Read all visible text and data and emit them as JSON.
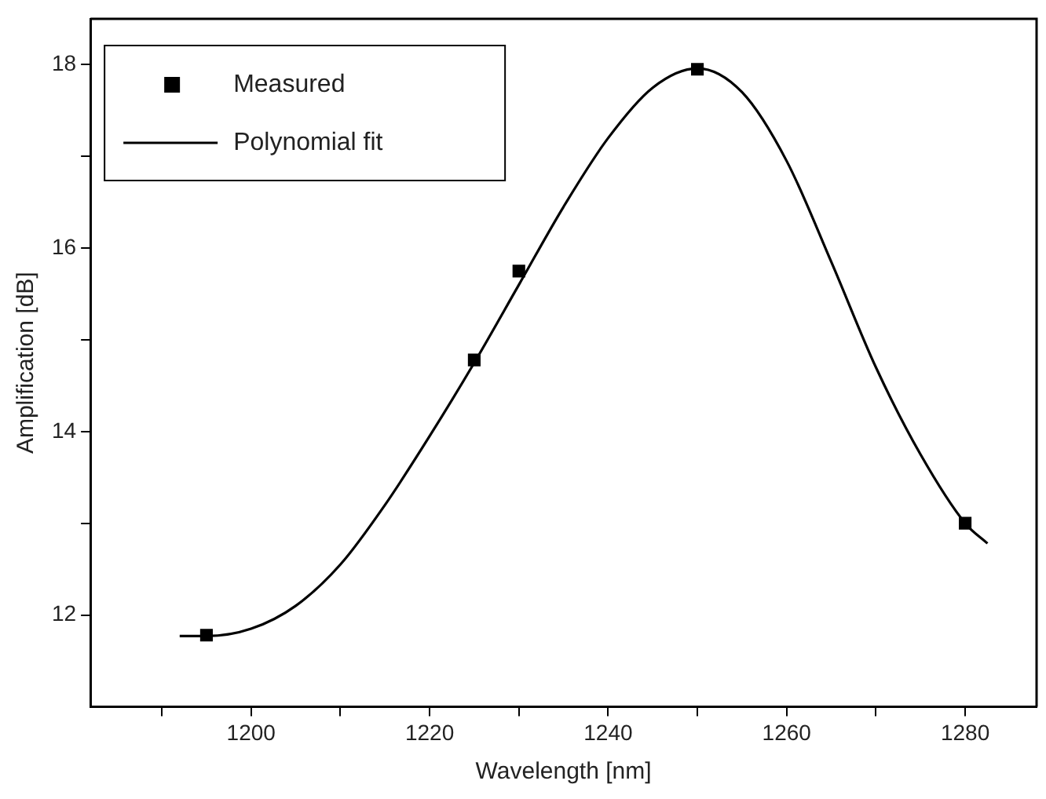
{
  "chart_data": {
    "type": "scatter",
    "xlabel": "Wavelength [nm]",
    "ylabel": "Amplification [dB]",
    "xlim": [
      1182,
      1288
    ],
    "ylim": [
      11,
      18.5
    ],
    "xticks": [
      {
        "value": 1190,
        "label": null
      },
      1200,
      {
        "value": 1210,
        "label": null
      },
      1220,
      {
        "value": 1230,
        "label": null
      },
      1240,
      {
        "value": 1250,
        "label": null
      },
      1260,
      {
        "value": 1270,
        "label": null
      },
      1280
    ],
    "yticks": [
      12,
      {
        "value": 13,
        "label": null
      },
      14,
      {
        "value": 15,
        "label": null
      },
      16,
      {
        "value": 17,
        "label": null
      },
      18
    ],
    "grid": false,
    "legend": "top left",
    "series": [
      {
        "name": "Measured",
        "marker": "square",
        "color": "#000000",
        "x": [
          1195,
          1225,
          1230,
          1250,
          1280
        ],
        "values": [
          11.78,
          14.78,
          15.75,
          17.95,
          13.0
        ]
      },
      {
        "name": "Polynomial fit",
        "type": "line",
        "marker": "none",
        "line_style": "solid",
        "color": "#000000",
        "x": [
          1192,
          1195,
          1200,
          1205,
          1210,
          1215,
          1220,
          1225,
          1230,
          1235,
          1240,
          1245,
          1250,
          1255,
          1260,
          1265,
          1270,
          1275,
          1280,
          1282.5
        ],
        "values": [
          11.77,
          11.77,
          11.85,
          12.1,
          12.55,
          13.2,
          13.95,
          14.75,
          15.6,
          16.45,
          17.2,
          17.75,
          17.96,
          17.7,
          16.95,
          15.85,
          14.7,
          13.75,
          13.0,
          12.78
        ]
      }
    ]
  }
}
